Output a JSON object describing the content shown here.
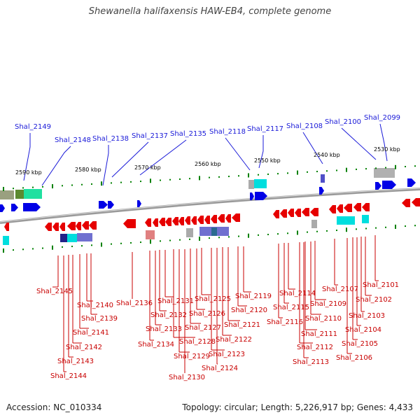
{
  "header": {
    "title": "Shewanella halifaxensis HAW-EB4, complete genome"
  },
  "footer": {
    "accession": "Accession: NC_010334",
    "summary": "Topology: circular; Length: 5,226,917 bp; Genes: 4,433"
  },
  "scale_ticks": [
    "2590 kbp",
    "2580 kbp",
    "2570 kbp",
    "2560 kbp",
    "2550 kbp",
    "2540 kbp",
    "2530 kbp"
  ],
  "top_genes": [
    "Shal_2149",
    "Shal_2148",
    "Shal_2138",
    "Shal_2137",
    "Shal_2135",
    "Shal_2118",
    "Shal_2117",
    "Shal_2108",
    "Shal_2100",
    "Shal_2099"
  ],
  "bottom_genes": [
    "Shal_2145",
    "Shal_2144",
    "Shal_2143",
    "Shal_2142",
    "Shal_2141",
    "Shal_2140",
    "Shal_2139",
    "Shal_2136",
    "Shal_2134",
    "Shal_2133",
    "Shal_2132",
    "Shal_2131",
    "Shal_2130",
    "Shal_2129",
    "Shal_2128",
    "Shal_2127",
    "Shal_2126",
    "Shal_2125",
    "Shal_2124",
    "Shal_2123",
    "Shal_2122",
    "Shal_2121",
    "Shal_2120",
    "Shal_2119",
    "Shal_2116",
    "Shal_2115",
    "Shal_2114",
    "Shal_2113",
    "Shal_2112",
    "Shal_2111",
    "Shal_2110",
    "Shal_2109",
    "Shal_2107",
    "Shal_2106",
    "Shal_2105",
    "Shal_2104",
    "Shal_2103",
    "Shal_2102",
    "Shal_2101"
  ],
  "colors": {
    "forward": "#0000e6",
    "reverse": "#e60000",
    "backbone": "#888888",
    "tick_green": "#008000",
    "label_top": "#1a1ad8",
    "label_bottom": "#c80000"
  }
}
